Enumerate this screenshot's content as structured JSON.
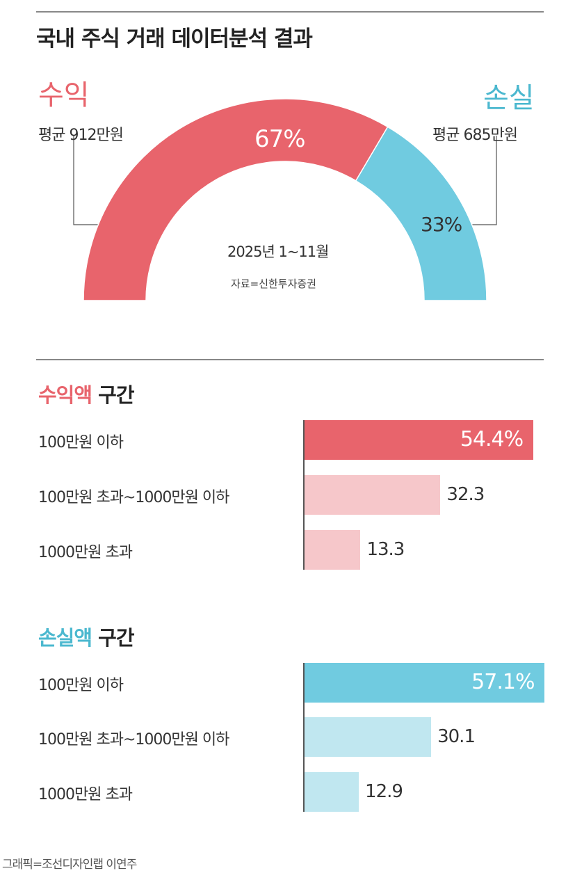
{
  "title": "국내 주식 거래 데이터분석 결과",
  "chart_data": [
    {
      "type": "pie",
      "subtype": "half-donut",
      "labels": [
        "수익",
        "손실"
      ],
      "values": [
        67,
        33
      ],
      "value_labels": [
        "67%",
        "33%"
      ],
      "averages": [
        "평균 912만원",
        "평균 685만원"
      ],
      "period": "2025년 1~11월",
      "source": "자료=신한투자증권",
      "colors": [
        "#e8646c",
        "#70cbe0"
      ]
    },
    {
      "type": "bar",
      "orientation": "horizontal",
      "title_highlight": "수익액",
      "title_rest": " 구간",
      "categories": [
        "100만원 이하",
        "100만원 초과~1000만원 이하",
        "1000만원 초과"
      ],
      "values": [
        54.4,
        32.3,
        13.3
      ],
      "value_labels": [
        "54.4%",
        "32.3",
        "13.3"
      ],
      "unit": "%",
      "colors": [
        "#e8646c",
        "#f6c7ca",
        "#f6c7ca"
      ]
    },
    {
      "type": "bar",
      "orientation": "horizontal",
      "title_highlight": "손실액",
      "title_rest": " 구간",
      "categories": [
        "100만원 이하",
        "100만원 초과~1000만원 이하",
        "1000만원 초과"
      ],
      "values": [
        57.1,
        30.1,
        12.9
      ],
      "value_labels": [
        "57.1%",
        "30.1",
        "12.9"
      ],
      "unit": "%",
      "colors": [
        "#70cbe0",
        "#c0e7f0",
        "#c0e7f0"
      ]
    }
  ],
  "credit": "그래픽=조선디자인랩 이연주"
}
